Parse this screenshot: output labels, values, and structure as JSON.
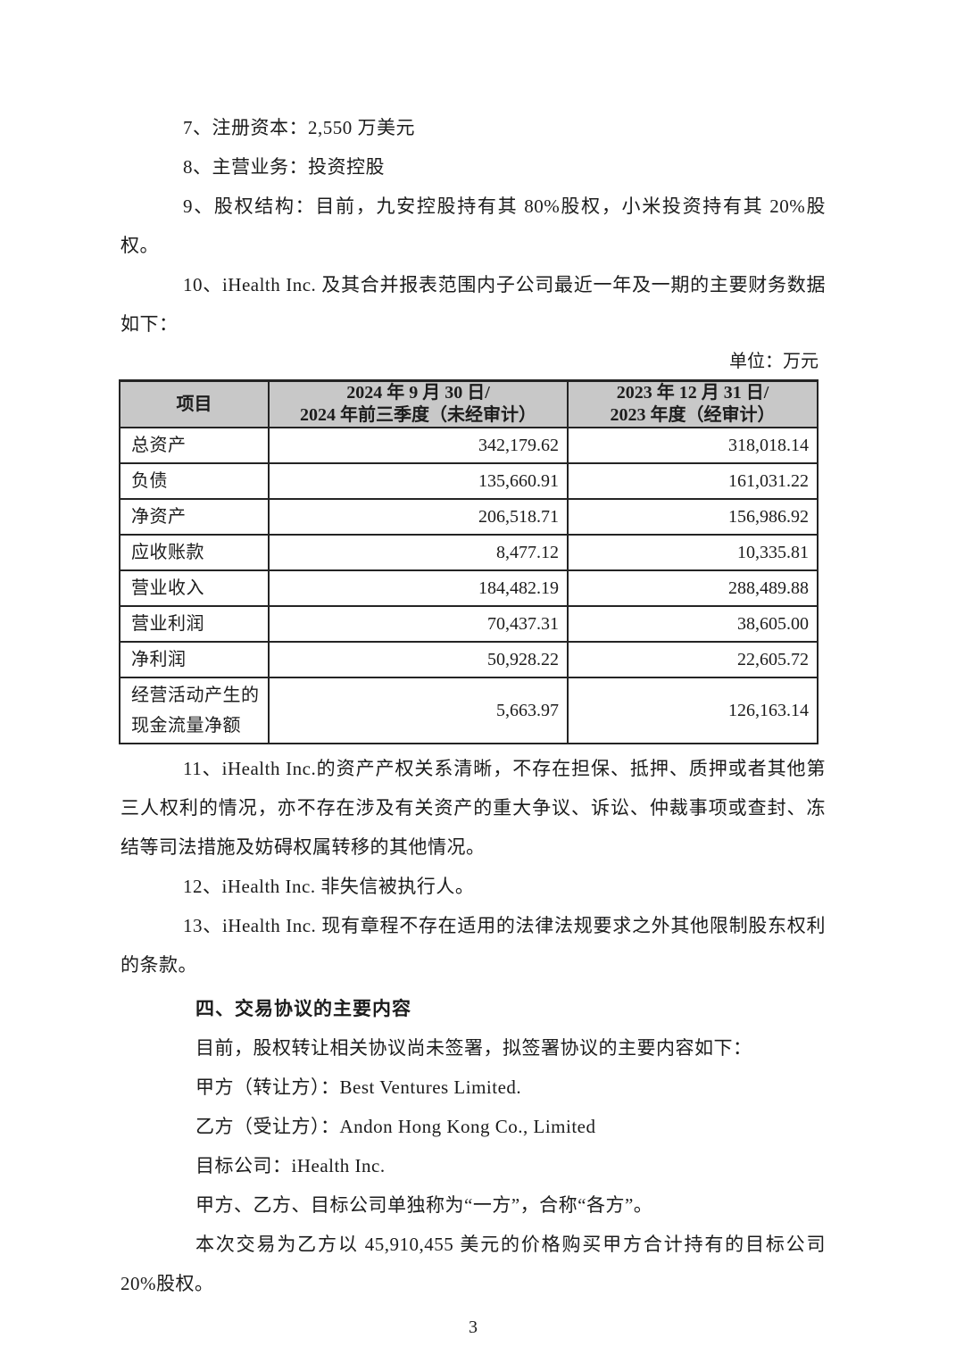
{
  "document": {
    "items": {
      "item7": "7、注册资本：2,550 万美元",
      "item8": "8、主营业务：投资控股",
      "item9": "9、股权结构：目前，九安控股持有其 80%股权，小米投资持有其 20%股权。",
      "item10": "10、iHealth Inc. 及其合并报表范围内子公司最近一年及一期的主要财务数据如下：",
      "item11": "11、iHealth Inc.的资产产权关系清晰，不存在担保、抵押、质押或者其他第三人权利的情况，亦不存在涉及有关资产的重大争议、诉讼、仲裁事项或查封、冻结等司法措施及妨碍权属转移的其他情况。",
      "item12": "12、iHealth Inc. 非失信被执行人。",
      "item13": "13、iHealth Inc. 现有章程不存在适用的法律法规要求之外其他限制股东权利的条款。"
    },
    "financial_table": {
      "unit_label": "单位：万元",
      "columns": [
        {
          "line1": "项目",
          "line2": ""
        },
        {
          "line1": "2024 年 9 月 30 日/",
          "line2": "2024 年前三季度（未经审计）"
        },
        {
          "line1": "2023 年 12 月 31 日/",
          "line2": "2023 年度（经审计）"
        }
      ],
      "rows": [
        {
          "label": "总资产",
          "v2024": "342,179.62",
          "v2023": "318,018.14"
        },
        {
          "label": "负债",
          "v2024": "135,660.91",
          "v2023": "161,031.22"
        },
        {
          "label": "净资产",
          "v2024": "206,518.71",
          "v2023": "156,986.92"
        },
        {
          "label": "应收账款",
          "v2024": "8,477.12",
          "v2023": "10,335.81"
        },
        {
          "label": "营业收入",
          "v2024": "184,482.19",
          "v2023": "288,489.88"
        },
        {
          "label": "营业利润",
          "v2024": "70,437.31",
          "v2023": "38,605.00"
        },
        {
          "label": "净利润",
          "v2024": "50,928.22",
          "v2023": "22,605.72"
        },
        {
          "label": "经营活动产生的现金流量净额",
          "v2024": "5,663.97",
          "v2023": "126,163.14"
        }
      ],
      "colors": {
        "header_bg": "#c8c8c8",
        "border": "#242424"
      }
    },
    "section_four": {
      "heading": "四、交易协议的主要内容",
      "p_intro": "目前，股权转让相关协议尚未签署，拟签署协议的主要内容如下：",
      "p_party_a": "甲方（转让方）：Best Ventures Limited.",
      "p_party_b": "乙方（受让方）：Andon Hong Kong Co., Limited",
      "p_target": "目标公司：iHealth Inc.",
      "p_naming": "甲方、乙方、目标公司单独称为“一方”，合称“各方”。",
      "p_deal": "本次交易为乙方以 45,910,455 美元的价格购买甲方合计持有的目标公司 20%股权。"
    },
    "footer": {
      "page_number": "3"
    }
  }
}
